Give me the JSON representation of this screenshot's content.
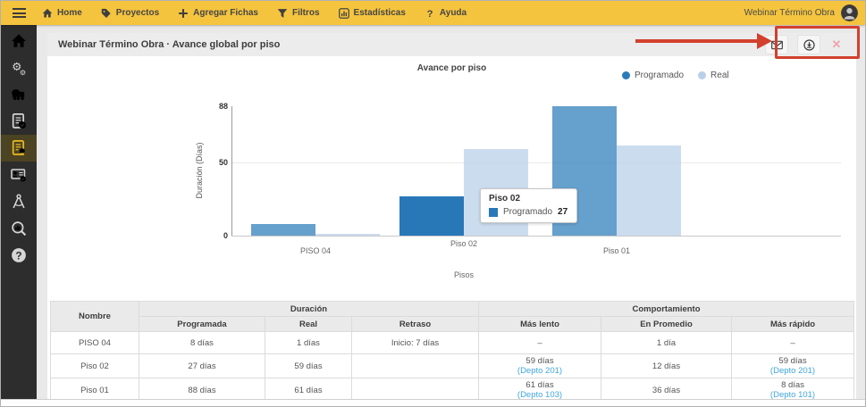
{
  "topnav": {
    "menu": [
      {
        "icon": "home",
        "label": "Home"
      },
      {
        "icon": "tags",
        "label": "Proyectos"
      },
      {
        "icon": "plus",
        "label": "Agregar Fichas"
      },
      {
        "icon": "filter",
        "label": "Filtros"
      },
      {
        "icon": "bar-chart",
        "label": "Estadísticas"
      },
      {
        "icon": "question",
        "label": "Ayuda"
      }
    ],
    "user_label": "Webinar Término Obra"
  },
  "sidebar": {
    "items": [
      {
        "icon": "home",
        "active": false
      },
      {
        "icon": "gears",
        "active": false
      },
      {
        "icon": "mixer-truck",
        "active": false
      },
      {
        "icon": "document-check",
        "active": false
      },
      {
        "icon": "document-award",
        "active": true
      },
      {
        "icon": "id-card-check",
        "active": false
      },
      {
        "icon": "drafting-compass",
        "active": false
      },
      {
        "icon": "search-chart",
        "active": false
      },
      {
        "icon": "help-circle",
        "active": false
      }
    ],
    "logo_icon": "crane-logo"
  },
  "content_header": {
    "title": "Webinar Término Obra · Avance global por piso",
    "actions": [
      {
        "icon": "envelope",
        "name": "email"
      },
      {
        "icon": "download",
        "name": "download"
      },
      {
        "icon": "close",
        "name": "close",
        "label": "✕"
      }
    ]
  },
  "chart_data": {
    "type": "bar",
    "title": "Avance por piso",
    "categories": [
      "PISO 04",
      "Piso 02",
      "Piso 01"
    ],
    "series": [
      {
        "name": "Programado",
        "values": [
          8,
          27,
          88
        ],
        "color": "#2b7bb9"
      },
      {
        "name": "Real",
        "values": [
          1,
          59,
          61
        ],
        "color": "#b9cfe9"
      }
    ],
    "xlabel": "Pisos",
    "ylabel": "Duración (Días)",
    "yticks": [
      0,
      50,
      88
    ],
    "ylim": [
      0,
      88
    ],
    "grid": true,
    "legend_position": "top-right",
    "highlighted_bar": {
      "category": "Piso 02",
      "series": "Programado",
      "highlight_color": "#2878b8"
    }
  },
  "tooltip": {
    "title": "Piso 02",
    "series": "Programado",
    "value": "27"
  },
  "table": {
    "group_headers": [
      {
        "label": "Nombre",
        "colspan": 1
      },
      {
        "label": "Duración",
        "colspan": 3
      },
      {
        "label": "Comportamiento",
        "colspan": 3
      }
    ],
    "sub_headers": [
      "Programada",
      "Real",
      "Retraso",
      "Más lento",
      "En Promedio",
      "Más rápido"
    ],
    "rows": [
      {
        "cells": [
          "PISO 04",
          "8 días",
          "1 días",
          "Inicio: 7 días",
          "–",
          "1 día",
          "–"
        ]
      },
      {
        "cells": [
          "Piso 02",
          "27 días",
          "59 días",
          "",
          {
            "text": "59 días",
            "link": "(Depto 201)"
          },
          "12 días",
          {
            "text": "59 días",
            "link": "(Depto 201)"
          }
        ]
      },
      {
        "cells": [
          "Piso 01",
          "88 días",
          "61 días",
          "",
          {
            "text": "61 días",
            "link": "(Depto 103)"
          },
          "36 días",
          {
            "text": "8 días",
            "link": "(Depto 101)"
          }
        ]
      }
    ]
  },
  "annotation": {
    "color": "#d2402e"
  }
}
